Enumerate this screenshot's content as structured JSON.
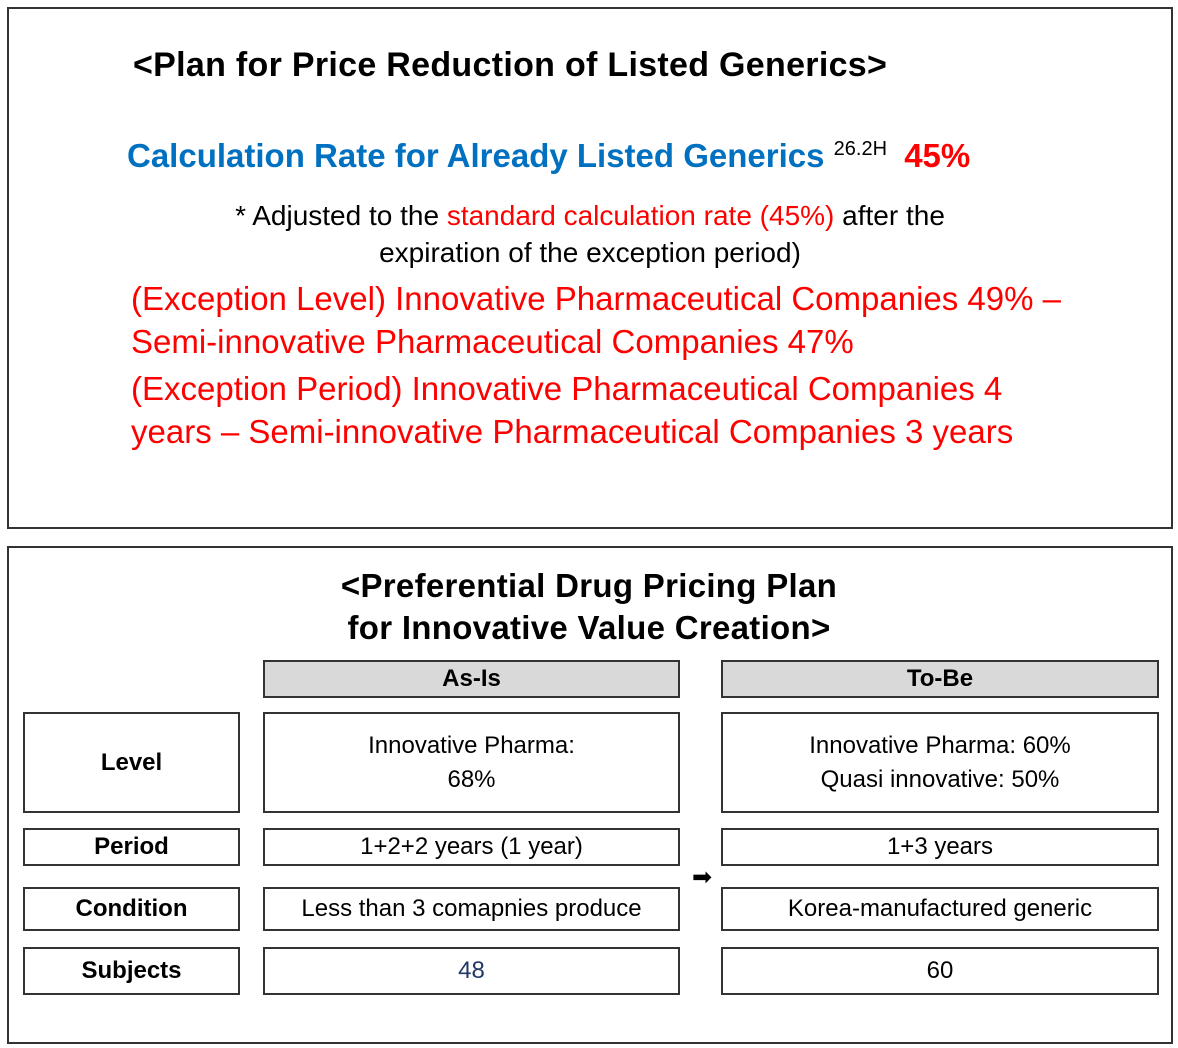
{
  "top": {
    "title": "<Plan for Price Reduction of Listed Generics>",
    "rate_label": "Calculation Rate for Already Listed Generics",
    "rate_superscript": "26.2H",
    "rate_value": "45%",
    "note_prefix": "* Adjusted to the",
    "note_highlight": "standard calculation rate (45%)",
    "note_suffix": "after the",
    "note_line2": "expiration of the exception period)",
    "exception_level": "(Exception Level) Innovative Pharmaceutical Companies 49% – Semi-innovative Pharmaceutical Companies 47%",
    "exception_period": "(Exception Period) Innovative Pharmaceutical Companies 4 years – Semi-innovative Pharmaceutical Companies 3 years"
  },
  "bottom": {
    "title_line1": "<Preferential Drug Pricing Plan",
    "title_line2": "for Innovative Value Creation>",
    "columns": [
      "As-Is",
      "To-Be"
    ],
    "arrow": "➡",
    "rows": [
      {
        "label": "Level",
        "as_is": "Innovative Pharma:\n68%",
        "to_be": "Innovative Pharma: 60%\nQuasi innovative: 50%"
      },
      {
        "label": "Period",
        "as_is": "1+2+2 years (1 year)",
        "to_be": "1+3 years"
      },
      {
        "label": "Condition",
        "as_is": "Less than 3 comapnies produce",
        "to_be": "Korea-manufactured generic"
      },
      {
        "label": "Subjects",
        "as_is": "48",
        "to_be": "60"
      }
    ]
  }
}
